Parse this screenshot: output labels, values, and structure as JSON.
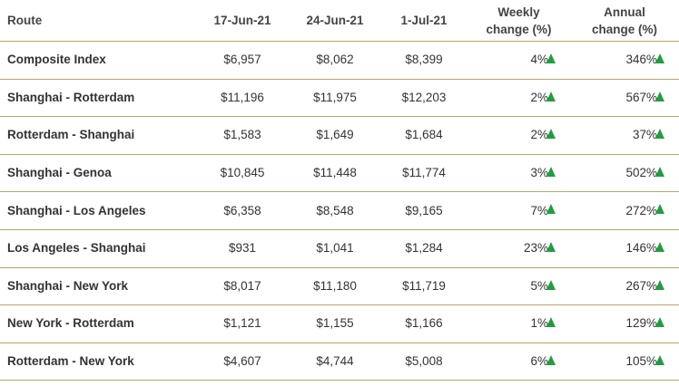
{
  "table": {
    "header": [
      "Route",
      "17-Jun-21",
      "24-Jun-21",
      "1-Jul-21",
      "Weekly change (%)",
      "Annual change (%)"
    ],
    "rows": [
      [
        "Composite Index",
        "$6,957",
        "$8,062",
        "$8,399",
        "4%",
        "346%"
      ],
      [
        "Shanghai - Rotterdam",
        "$11,196",
        "$11,975",
        "$12,203",
        "2%",
        "567%"
      ],
      [
        "Rotterdam - Shanghai",
        "$1,583",
        "$1,649",
        "$1,684",
        "2%",
        "37%"
      ],
      [
        "Shanghai - Genoa",
        "$10,845",
        "$11,448",
        "$11,774",
        "3%",
        "502%"
      ],
      [
        "Shanghai - Los Angeles",
        "$6,358",
        "$8,548",
        "$9,165",
        "7%",
        "272%"
      ],
      [
        "Los Angeles - Shanghai",
        "$931",
        "$1,041",
        "$1,284",
        "23%",
        "146%"
      ],
      [
        "Shanghai - New York",
        "$8,017",
        "$11,180",
        "$11,719",
        "5%",
        "267%"
      ],
      [
        "New York - Rotterdam",
        "$1,121",
        "$1,155",
        "$1,166",
        "1%",
        "129%"
      ],
      [
        "Rotterdam - New York",
        "$4,607",
        "$4,744",
        "$5,008",
        "6%",
        "105%"
      ]
    ]
  }
}
